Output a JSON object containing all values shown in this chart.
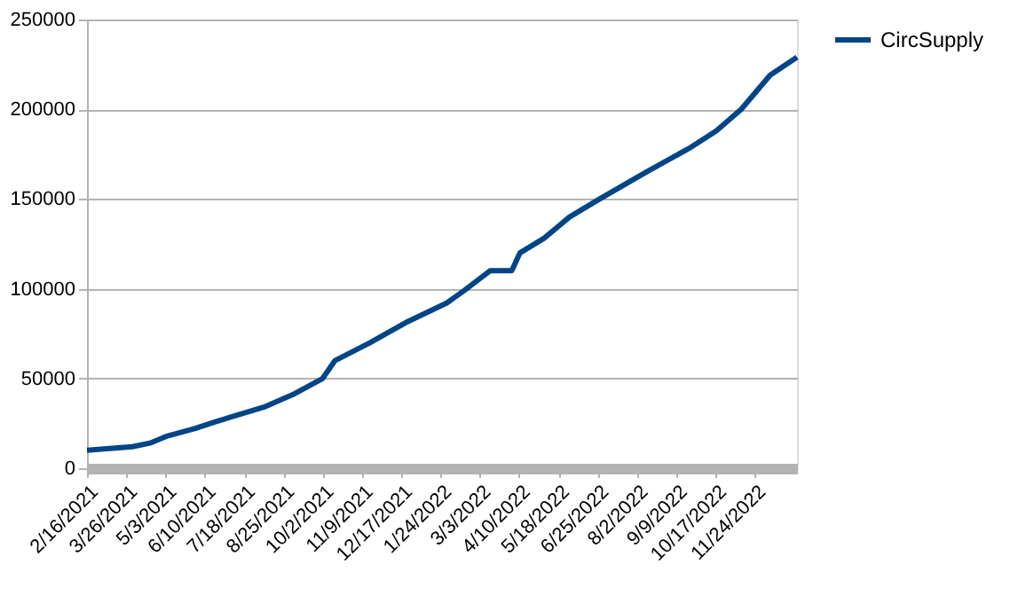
{
  "chart_data": {
    "type": "line",
    "xlim": [
      "2021-02-16",
      "2023-01-04"
    ],
    "ylim": [
      0,
      250000
    ],
    "yticks": [
      0,
      50000,
      100000,
      150000,
      200000,
      250000
    ],
    "xticks": [
      {
        "value": "2021-02-16",
        "label": "2/16/2021"
      },
      {
        "value": "2021-03-26",
        "label": "3/26/2021"
      },
      {
        "value": "2021-05-03",
        "label": "5/3/2021"
      },
      {
        "value": "2021-06-10",
        "label": "6/10/2021"
      },
      {
        "value": "2021-07-18",
        "label": "7/18/2021"
      },
      {
        "value": "2021-08-25",
        "label": "8/25/2021"
      },
      {
        "value": "2021-10-02",
        "label": "10/2/2021"
      },
      {
        "value": "2021-11-09",
        "label": "11/9/2021"
      },
      {
        "value": "2021-12-17",
        "label": "12/17/2021"
      },
      {
        "value": "2022-01-24",
        "label": "1/24/2022"
      },
      {
        "value": "2022-03-03",
        "label": "3/3/2022"
      },
      {
        "value": "2022-04-10",
        "label": "4/10/2022"
      },
      {
        "value": "2022-05-18",
        "label": "5/18/2022"
      },
      {
        "value": "2022-06-25",
        "label": "6/25/2022"
      },
      {
        "value": "2022-08-02",
        "label": "8/2/2022"
      },
      {
        "value": "2022-09-09",
        "label": "9/9/2022"
      },
      {
        "value": "2022-10-17",
        "label": "10/17/2022"
      },
      {
        "value": "2022-11-24",
        "label": "11/24/2022"
      }
    ],
    "grid": "y",
    "legend": "right",
    "line_style": "solid",
    "marker": "none",
    "x": [
      "2021-02-16",
      "2021-04-01",
      "2021-04-18",
      "2021-05-05",
      "2021-05-31",
      "2021-06-21",
      "2021-08-06",
      "2021-09-03",
      "2021-10-02",
      "2021-10-14",
      "2021-11-17",
      "2021-12-21",
      "2022-01-30",
      "2022-02-16",
      "2022-03-13",
      "2022-04-03",
      "2022-04-11",
      "2022-05-04",
      "2022-05-29",
      "2022-06-27",
      "2022-08-11",
      "2022-09-21",
      "2022-10-18",
      "2022-11-11",
      "2022-12-09",
      "2023-01-04"
    ],
    "series": [
      {
        "name": "CircSupply",
        "color": "#004586",
        "values": [
          10000,
          12000,
          14000,
          18000,
          22000,
          26000,
          34000,
          41000,
          50000,
          60000,
          70000,
          81000,
          92000,
          99000,
          110000,
          110000,
          120000,
          128000,
          140000,
          150000,
          165000,
          178000,
          188000,
          200000,
          219000,
          229000
        ]
      }
    ]
  }
}
